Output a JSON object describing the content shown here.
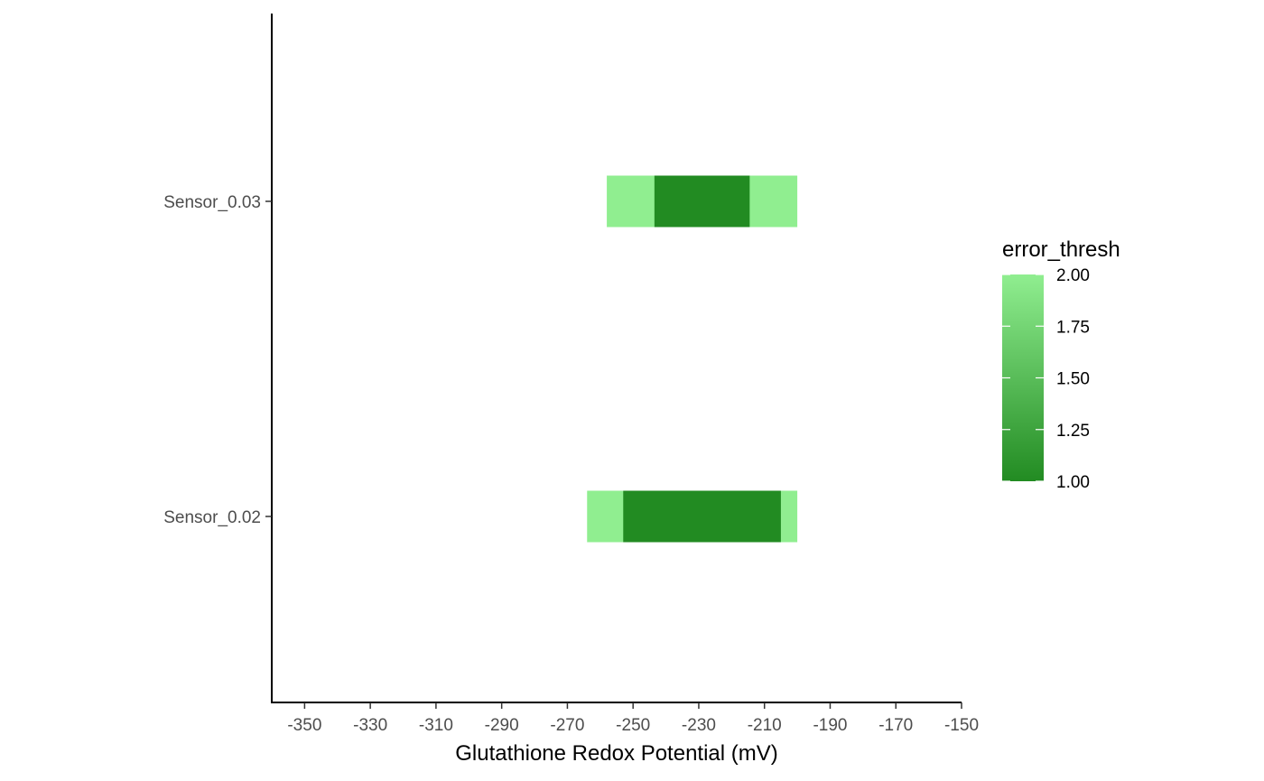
{
  "chart_data": {
    "type": "bar",
    "orientation": "horizontal-range",
    "xlabel": "Glutathione Redox Potential (mV)",
    "ylabel": "",
    "xlim": [
      -360,
      -150
    ],
    "x_ticks": [
      "-350",
      "-330",
      "-310",
      "-290",
      "-270",
      "-250",
      "-230",
      "-210",
      "-190",
      "-170",
      "-150"
    ],
    "x_tick_values": [
      -350,
      -330,
      -310,
      -290,
      -270,
      -250,
      -230,
      -210,
      -190,
      -170,
      -150
    ],
    "categories": [
      "Sensor_0.02",
      "Sensor_0.03"
    ],
    "bars": [
      {
        "category": "Sensor_0.03",
        "start": -258,
        "end": -200,
        "error_thresh": 2.0
      },
      {
        "category": "Sensor_0.03",
        "start": -243.5,
        "end": -214.5,
        "error_thresh": 1.0
      },
      {
        "category": "Sensor_0.02",
        "start": -264,
        "end": -200,
        "error_thresh": 2.0
      },
      {
        "category": "Sensor_0.02",
        "start": -253,
        "end": -205,
        "error_thresh": 1.0
      }
    ],
    "legend": {
      "title": "error_thresh",
      "labels": [
        "2.00",
        "1.75",
        "1.50",
        "1.25",
        "1.00"
      ],
      "values": [
        2.0,
        1.75,
        1.5,
        1.25,
        1.0
      ],
      "color_low": "#228B22",
      "color_high": "#90EE90",
      "placement": "right"
    },
    "grid": false
  }
}
